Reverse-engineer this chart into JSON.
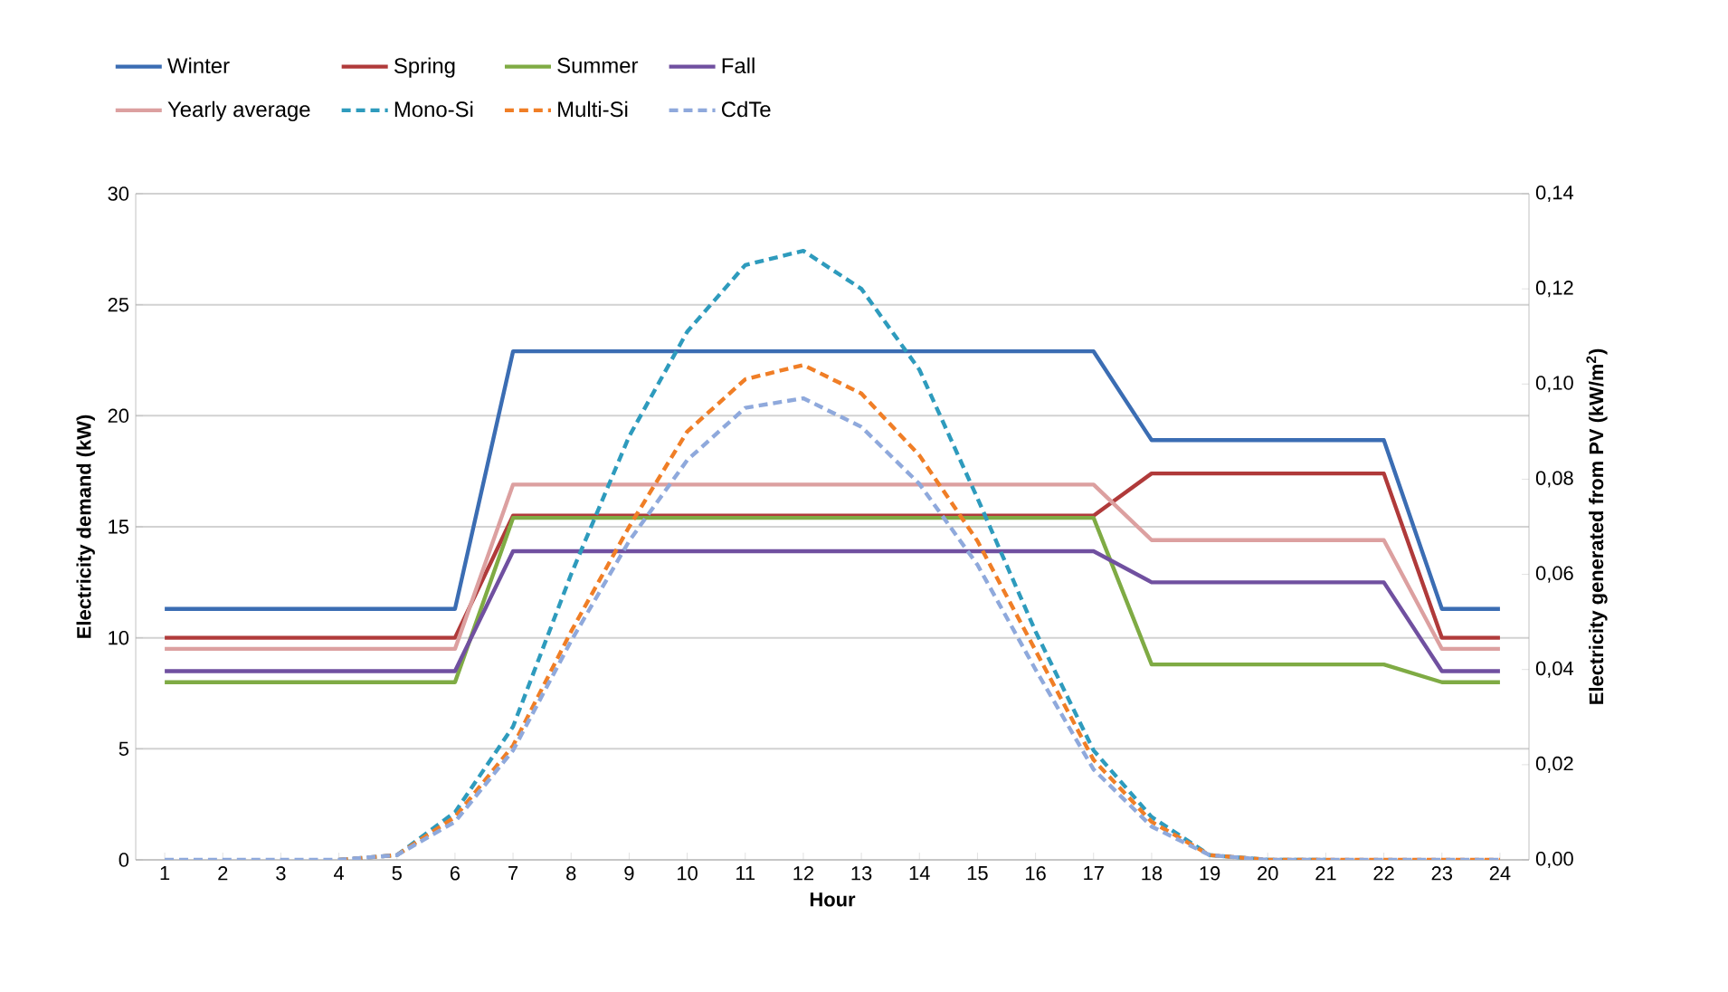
{
  "chart_data": {
    "type": "line",
    "xlabel": "Hour",
    "ylabel": "Electricity demand (kW)",
    "y2label": "Electricity generated from PV (kW/m$^{2}$)",
    "categories": [
      "1",
      "2",
      "3",
      "4",
      "5",
      "6",
      "7",
      "8",
      "9",
      "10",
      "11",
      "12",
      "13",
      "14",
      "15",
      "16",
      "17",
      "18",
      "19",
      "20",
      "21",
      "22",
      "23",
      "24"
    ],
    "ylim": [
      0,
      30
    ],
    "yticks": [
      0,
      5,
      10,
      15,
      20,
      25,
      30
    ],
    "y2lim": [
      0,
      0.14
    ],
    "y2ticks": [
      {
        "value": 0,
        "label": "0,00"
      },
      {
        "value": 0.02,
        "label": "0,02"
      },
      {
        "value": 0.04,
        "label": "0,04"
      },
      {
        "value": 0.06,
        "label": "0,06"
      },
      {
        "value": 0.08,
        "label": "0,08"
      },
      {
        "value": 0.1,
        "label": "0,10"
      },
      {
        "value": 0.12,
        "label": "0,12"
      },
      {
        "value": 0.14,
        "label": "0,14"
      }
    ],
    "grid": "y",
    "legend": "top",
    "marker": "none",
    "series": [
      {
        "name": "Winter",
        "color": "#3b6db3",
        "line_style": "solid",
        "values": [
          11.3,
          11.3,
          11.3,
          11.3,
          11.3,
          11.3,
          22.9,
          22.9,
          22.9,
          22.9,
          22.9,
          22.9,
          22.9,
          22.9,
          22.9,
          22.9,
          22.9,
          18.9,
          18.9,
          18.9,
          18.9,
          18.9,
          11.3,
          11.3
        ]
      },
      {
        "name": "Spring",
        "color": "#b03a3a",
        "line_style": "solid",
        "values": [
          10.0,
          10.0,
          10.0,
          10.0,
          10.0,
          10.0,
          15.5,
          15.5,
          15.5,
          15.5,
          15.5,
          15.5,
          15.5,
          15.5,
          15.5,
          15.5,
          15.5,
          17.4,
          17.4,
          17.4,
          17.4,
          17.4,
          10.0,
          10.0
        ]
      },
      {
        "name": "Summer",
        "color": "#7fab44",
        "line_style": "solid",
        "values": [
          8.0,
          8.0,
          8.0,
          8.0,
          8.0,
          8.0,
          15.4,
          15.4,
          15.4,
          15.4,
          15.4,
          15.4,
          15.4,
          15.4,
          15.4,
          15.4,
          15.4,
          8.8,
          8.8,
          8.8,
          8.8,
          8.8,
          8.0,
          8.0
        ]
      },
      {
        "name": "Fall",
        "color": "#7050a0",
        "line_style": "solid",
        "values": [
          8.5,
          8.5,
          8.5,
          8.5,
          8.5,
          8.5,
          13.9,
          13.9,
          13.9,
          13.9,
          13.9,
          13.9,
          13.9,
          13.9,
          13.9,
          13.9,
          13.9,
          12.5,
          12.5,
          12.5,
          12.5,
          12.5,
          8.5,
          8.5
        ]
      },
      {
        "name": "Yearly average",
        "color": "#dca0a0",
        "line_style": "solid",
        "values": [
          9.5,
          9.5,
          9.5,
          9.5,
          9.5,
          9.5,
          16.9,
          16.9,
          16.9,
          16.9,
          16.9,
          16.9,
          16.9,
          16.9,
          16.9,
          16.9,
          16.9,
          14.4,
          14.4,
          14.4,
          14.4,
          14.4,
          9.5,
          9.5
        ]
      },
      {
        "name": "Mono-Si",
        "color": "#2e9bbd",
        "line_style": "dashed",
        "axis": "y2",
        "values": [
          null,
          null,
          null,
          0,
          0.001,
          0.01,
          0.028,
          0.06,
          0.089,
          0.111,
          0.125,
          0.128,
          0.12,
          0.103,
          0.076,
          0.048,
          0.023,
          0.009,
          0.001,
          0,
          0,
          null,
          null,
          null
        ]
      },
      {
        "name": "Multi-Si",
        "color": "#f07e26",
        "line_style": "dashed",
        "axis": "y2",
        "values": [
          null,
          null,
          null,
          0,
          0.001,
          0.009,
          0.024,
          0.048,
          0.07,
          0.09,
          0.101,
          0.104,
          0.098,
          0.085,
          0.067,
          0.044,
          0.021,
          0.008,
          0.001,
          0,
          0,
          0,
          0,
          0
        ]
      },
      {
        "name": "CdTe",
        "color": "#8fa9dc",
        "line_style": "dashed",
        "axis": "y2",
        "values": [
          0,
          0,
          0,
          0,
          0.001,
          0.008,
          0.023,
          0.046,
          0.067,
          0.084,
          0.095,
          0.097,
          0.091,
          0.079,
          0.062,
          0.04,
          0.019,
          0.007,
          0.001,
          0,
          0,
          0,
          0,
          0
        ]
      }
    ]
  }
}
